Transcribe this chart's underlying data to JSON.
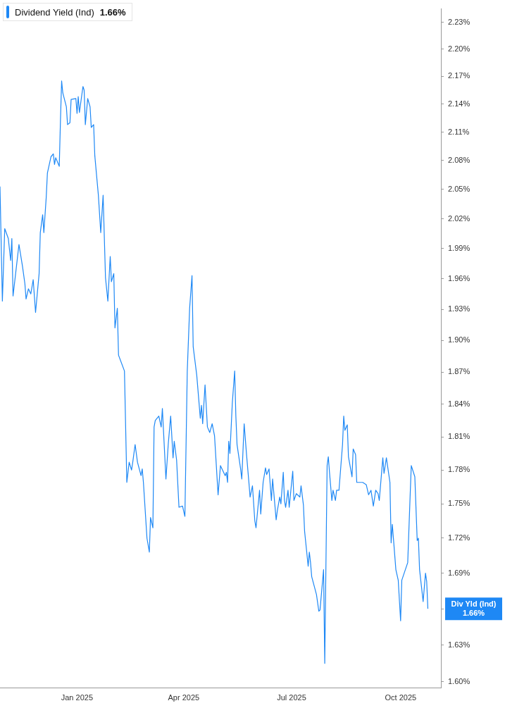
{
  "chart_data": {
    "type": "line",
    "log": "y",
    "legend": "top left",
    "grid": false,
    "marker": "none",
    "line_style": "solid",
    "x": [
      "2024-10-28",
      "2024-10-30",
      "2024-11-01",
      "2024-11-04",
      "2024-11-06",
      "2024-11-07",
      "2024-11-08",
      "2024-11-09",
      "2024-11-13",
      "2024-11-16",
      "2024-11-18",
      "2024-11-19",
      "2024-11-21",
      "2024-11-23",
      "2024-11-25",
      "2024-11-27",
      "2024-11-30",
      "2024-12-01",
      "2024-12-03",
      "2024-12-04",
      "2024-12-06",
      "2024-12-07",
      "2024-12-10",
      "2024-12-12",
      "2024-12-13",
      "2024-12-14",
      "2024-12-17",
      "2024-12-18",
      "2024-12-19",
      "2024-12-20",
      "2024-12-23",
      "2024-12-24",
      "2024-12-26",
      "2024-12-27",
      "2024-12-31",
      "2025-01-01",
      "2025-01-02",
      "2025-01-03",
      "2025-01-06",
      "2025-01-07",
      "2025-01-08",
      "2025-01-10",
      "2025-01-12",
      "2025-01-13",
      "2025-01-15",
      "2025-01-16",
      "2025-01-19",
      "2025-01-21",
      "2025-01-23",
      "2025-01-25",
      "2025-01-27",
      "2025-01-29",
      "2025-01-30",
      "2025-02-01",
      "2025-02-02",
      "2025-02-04",
      "2025-02-05",
      "2025-02-10",
      "2025-02-12",
      "2025-02-14",
      "2025-02-16",
      "2025-02-17",
      "2025-02-19",
      "2025-02-21",
      "2025-02-24",
      "2025-02-25",
      "2025-02-26",
      "2025-03-01",
      "2025-03-03",
      "2025-03-04",
      "2025-03-06",
      "2025-03-07",
      "2025-03-08",
      "2025-03-11",
      "2025-03-13",
      "2025-03-14",
      "2025-03-17",
      "2025-03-19",
      "2025-03-21",
      "2025-03-23",
      "2025-03-24",
      "2025-03-26",
      "2025-03-28",
      "2025-03-31",
      "2025-04-02",
      "2025-04-04",
      "2025-04-06",
      "2025-04-08",
      "2025-04-09",
      "2025-04-12",
      "2025-04-15",
      "2025-04-16",
      "2025-04-17",
      "2025-04-19",
      "2025-04-21",
      "2025-04-23",
      "2025-04-25",
      "2025-04-27",
      "2025-04-30",
      "2025-05-02",
      "2025-05-06",
      "2025-05-07",
      "2025-05-08",
      "2025-05-09",
      "2025-05-10",
      "2025-05-12",
      "2025-05-14",
      "2025-05-15",
      "2025-05-16",
      "2025-05-19",
      "2025-05-20",
      "2025-05-22",
      "2025-05-24",
      "2025-05-26",
      "2025-05-27",
      "2025-05-29",
      "2025-05-31",
      "2025-06-01",
      "2025-06-04",
      "2025-06-05",
      "2025-06-07",
      "2025-06-09",
      "2025-06-10",
      "2025-06-12",
      "2025-06-14",
      "2025-06-15",
      "2025-06-18",
      "2025-06-19",
      "2025-06-21",
      "2025-06-22",
      "2025-06-24",
      "2025-06-25",
      "2025-06-26",
      "2025-06-28",
      "2025-06-29",
      "2025-07-02",
      "2025-07-03",
      "2025-07-05",
      "2025-07-08",
      "2025-07-09",
      "2025-07-11",
      "2025-07-12",
      "2025-07-15",
      "2025-07-16",
      "2025-07-17",
      "2025-07-18",
      "2025-07-22",
      "2025-07-24",
      "2025-07-25",
      "2025-07-28",
      "2025-07-29",
      "2025-07-31",
      "2025-08-01",
      "2025-08-02",
      "2025-08-04",
      "2025-08-05",
      "2025-08-07",
      "2025-08-08",
      "2025-08-10",
      "2025-08-13",
      "2025-08-14",
      "2025-08-15",
      "2025-08-17",
      "2025-08-18",
      "2025-08-21",
      "2025-08-22",
      "2025-08-24",
      "2025-08-25",
      "2025-08-28",
      "2025-08-30",
      "2025-09-02",
      "2025-09-04",
      "2025-09-06",
      "2025-09-08",
      "2025-09-10",
      "2025-09-12",
      "2025-09-13",
      "2025-09-16",
      "2025-09-17",
      "2025-09-19",
      "2025-09-22",
      "2025-09-23",
      "2025-09-24",
      "2025-09-25",
      "2025-09-27",
      "2025-09-29",
      "2025-10-01",
      "2025-10-02",
      "2025-10-04",
      "2025-10-07",
      "2025-10-09",
      "2025-10-10",
      "2025-10-13",
      "2025-10-15",
      "2025-10-16",
      "2025-10-17",
      "2025-10-20",
      "2025-10-22",
      "2025-10-23",
      "2025-10-24"
    ],
    "series": [
      {
        "name": "Dividend Yield (Ind)",
        "color": "#1e88f5",
        "values": [
          2.053,
          1.938,
          2.01,
          2.0,
          1.978,
          2.0,
          1.943,
          1.953,
          1.994,
          1.972,
          1.955,
          1.94,
          1.95,
          1.945,
          1.959,
          1.927,
          1.965,
          2.006,
          2.024,
          2.006,
          2.042,
          2.067,
          2.084,
          2.087,
          2.076,
          2.083,
          2.074,
          2.122,
          2.165,
          2.152,
          2.137,
          2.118,
          2.12,
          2.145,
          2.146,
          2.13,
          2.148,
          2.131,
          2.159,
          2.155,
          2.118,
          2.146,
          2.137,
          2.115,
          2.118,
          2.085,
          2.044,
          2.006,
          2.044,
          1.961,
          1.938,
          1.982,
          1.957,
          1.965,
          1.912,
          1.931,
          1.886,
          1.871,
          1.769,
          1.787,
          1.78,
          1.787,
          1.803,
          1.787,
          1.775,
          1.781,
          1.769,
          1.72,
          1.708,
          1.738,
          1.729,
          1.819,
          1.825,
          1.829,
          1.819,
          1.836,
          1.772,
          1.804,
          1.829,
          1.791,
          1.806,
          1.789,
          1.747,
          1.748,
          1.739,
          1.871,
          1.931,
          1.963,
          1.894,
          1.867,
          1.827,
          1.839,
          1.822,
          1.858,
          1.819,
          1.814,
          1.822,
          1.811,
          1.758,
          1.784,
          1.775,
          1.778,
          1.769,
          1.806,
          1.795,
          1.841,
          1.871,
          1.829,
          1.803,
          1.781,
          1.772,
          1.822,
          1.794,
          1.769,
          1.756,
          1.766,
          1.735,
          1.729,
          1.762,
          1.741,
          1.769,
          1.782,
          1.776,
          1.781,
          1.753,
          1.772,
          1.736,
          1.744,
          1.756,
          1.75,
          1.778,
          1.753,
          1.747,
          1.762,
          1.747,
          1.779,
          1.753,
          1.759,
          1.756,
          1.766,
          1.749,
          1.726,
          1.696,
          1.708,
          1.699,
          1.687,
          1.672,
          1.658,
          1.659,
          1.693,
          1.615,
          1.784,
          1.792,
          1.778,
          1.753,
          1.762,
          1.753,
          1.762,
          1.762,
          1.803,
          1.829,
          1.816,
          1.821,
          1.792,
          1.774,
          1.799,
          1.794,
          1.769,
          1.769,
          1.769,
          1.767,
          1.758,
          1.762,
          1.748,
          1.762,
          1.759,
          1.753,
          1.791,
          1.777,
          1.791,
          1.769,
          1.716,
          1.732,
          1.719,
          1.693,
          1.684,
          1.65,
          1.684,
          1.69,
          1.699,
          1.756,
          1.784,
          1.774,
          1.718,
          1.72,
          1.693,
          1.666,
          1.69,
          1.683,
          1.66
        ]
      }
    ],
    "xlim": [
      "2024-10-28",
      "2025-11-04"
    ],
    "xticks": [
      {
        "value": "2025-01-01",
        "label": "Jan 2025"
      },
      {
        "value": "2025-04-01",
        "label": "Apr 2025"
      },
      {
        "value": "2025-07-01",
        "label": "Jul 2025"
      },
      {
        "value": "2025-10-01",
        "label": "Oct 2025"
      }
    ],
    "ylim": [
      1.595,
      2.245
    ],
    "yticks": [
      {
        "value": 1.6,
        "label": "1.60%"
      },
      {
        "value": 1.63,
        "label": "1.63%"
      },
      {
        "value": 1.66,
        "label": null
      },
      {
        "value": 1.69,
        "label": "1.69%"
      },
      {
        "value": 1.72,
        "label": "1.72%"
      },
      {
        "value": 1.75,
        "label": "1.75%"
      },
      {
        "value": 1.78,
        "label": "1.78%"
      },
      {
        "value": 1.81,
        "label": "1.81%"
      },
      {
        "value": 1.84,
        "label": "1.84%"
      },
      {
        "value": 1.87,
        "label": "1.87%"
      },
      {
        "value": 1.9,
        "label": "1.90%"
      },
      {
        "value": 1.93,
        "label": "1.93%"
      },
      {
        "value": 1.96,
        "label": "1.96%"
      },
      {
        "value": 1.99,
        "label": "1.99%"
      },
      {
        "value": 2.02,
        "label": "2.02%"
      },
      {
        "value": 2.05,
        "label": "2.05%"
      },
      {
        "value": 2.08,
        "label": "2.08%"
      },
      {
        "value": 2.11,
        "label": "2.11%"
      },
      {
        "value": 2.14,
        "label": "2.14%"
      },
      {
        "value": 2.17,
        "label": "2.17%"
      },
      {
        "value": 2.2,
        "label": "2.20%"
      },
      {
        "value": 2.23,
        "label": "2.23%"
      }
    ],
    "annotations": [
      "1.66%",
      "Div Yld (Ind)",
      "1.66%"
    ]
  }
}
